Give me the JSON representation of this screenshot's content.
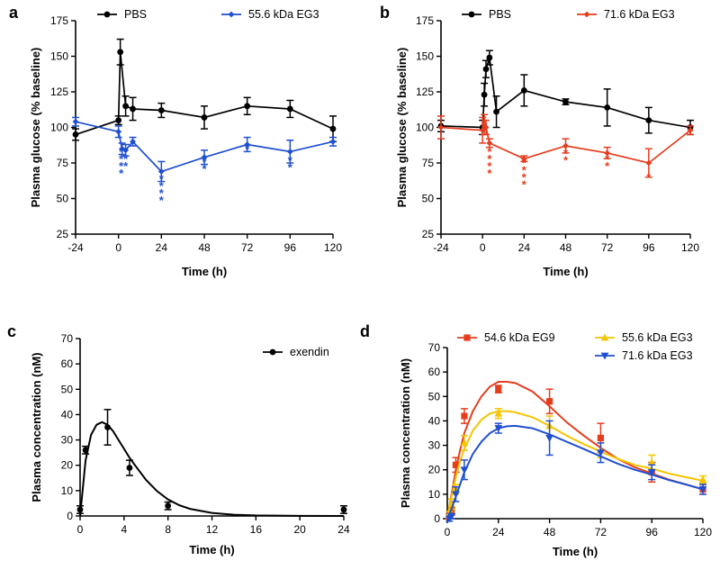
{
  "chart_data": [
    {
      "panel": "a",
      "type": "line",
      "title": "",
      "xlabel": "Time (h)",
      "ylabel": "Plasma glucose (% baseline)",
      "xlim": [
        -24,
        120
      ],
      "ylim": [
        25,
        175
      ],
      "xticks": [
        -24,
        0,
        24,
        48,
        72,
        96,
        120
      ],
      "yticks": [
        25,
        50,
        75,
        100,
        125,
        150,
        175
      ],
      "legend": "top",
      "series": [
        {
          "name": "PBS",
          "color": "#000000",
          "marker": "circle",
          "x": [
            -24,
            0,
            1,
            4,
            8,
            24,
            48,
            72,
            96,
            120
          ],
          "y": [
            95,
            105,
            153,
            115,
            113,
            112,
            107,
            115,
            113,
            99
          ],
          "err": [
            4,
            3,
            9,
            7,
            8,
            5,
            8,
            6,
            6,
            9
          ]
        },
        {
          "name": "55.6 kDa EG3",
          "color": "#1f4fd1",
          "marker": "diamond",
          "x": [
            -24,
            0,
            2,
            4,
            8,
            24,
            48,
            72,
            96,
            120
          ],
          "y": [
            104,
            97,
            85,
            84,
            90,
            69,
            79,
            88,
            83,
            90
          ],
          "err": [
            3,
            4,
            4,
            4,
            3,
            7,
            5,
            5,
            8,
            3
          ]
        }
      ],
      "annotations": [
        {
          "x": 1.5,
          "y": 80,
          "text": "****",
          "color": "#1f4fd1"
        },
        {
          "x": 4,
          "y": 80,
          "text": "***",
          "color": "#1f4fd1"
        },
        {
          "x": 8,
          "y": 86,
          "text": "*",
          "color": "#1f4fd1"
        },
        {
          "x": 24,
          "y": 61,
          "text": "****",
          "color": "#1f4fd1"
        },
        {
          "x": 48,
          "y": 73,
          "text": "**",
          "color": "#1f4fd1"
        },
        {
          "x": 72,
          "y": 82,
          "text": "*",
          "color": "#1f4fd1"
        },
        {
          "x": 96,
          "y": 74,
          "text": "**",
          "color": "#1f4fd1"
        }
      ]
    },
    {
      "panel": "b",
      "type": "line",
      "title": "",
      "xlabel": "Time (h)",
      "ylabel": "Plasma glucose (% baseline)",
      "xlim": [
        -24,
        120
      ],
      "ylim": [
        25,
        175
      ],
      "xticks": [
        -24,
        0,
        24,
        48,
        72,
        96,
        120
      ],
      "yticks": [
        25,
        50,
        75,
        100,
        125,
        150,
        175
      ],
      "legend": "top",
      "series": [
        {
          "name": "PBS",
          "color": "#000000",
          "marker": "circle",
          "x": [
            -24,
            0,
            1,
            2,
            4,
            8,
            24,
            48,
            72,
            96,
            120
          ],
          "y": [
            101,
            100,
            123,
            141,
            149,
            111,
            126,
            118,
            114,
            105,
            100
          ],
          "err": [
            4,
            5,
            8,
            6,
            5,
            11,
            11,
            2,
            13,
            9,
            5
          ]
        },
        {
          "name": "71.6 kDa EG3",
          "color": "#e53d1e",
          "marker": "diamond",
          "x": [
            -24,
            0,
            1,
            2,
            4,
            24,
            48,
            72,
            96,
            120
          ],
          "y": [
            100,
            98,
            102,
            100,
            89,
            78,
            87,
            82,
            75,
            98
          ],
          "err": [
            8,
            9,
            7,
            5,
            3,
            2,
            5,
            4,
            10,
            3
          ]
        }
      ],
      "annotations": [
        {
          "x": 4,
          "y": 80,
          "text": "****",
          "color": "#e53d1e"
        },
        {
          "x": 24,
          "y": 72,
          "text": "****",
          "color": "#e53d1e"
        },
        {
          "x": 48,
          "y": 79,
          "text": "**",
          "color": "#e53d1e"
        },
        {
          "x": 72,
          "y": 75,
          "text": "**",
          "color": "#e53d1e"
        },
        {
          "x": 96,
          "y": 62,
          "text": "*",
          "color": "#e53d1e"
        }
      ]
    },
    {
      "panel": "c",
      "type": "scatter",
      "title": "",
      "xlabel": "Time (h)",
      "ylabel": "Plasma concentration (nM)",
      "xlim": [
        0,
        24
      ],
      "ylim": [
        0,
        70
      ],
      "xticks": [
        0,
        4,
        8,
        12,
        16,
        20,
        24
      ],
      "yticks": [
        0,
        10,
        20,
        30,
        40,
        50,
        60,
        70
      ],
      "legend": "top-right",
      "series": [
        {
          "name": "exendin",
          "color": "#000000",
          "marker": "circle",
          "x": [
            0,
            0.5,
            2.5,
            4.5,
            8,
            24
          ],
          "y": [
            2.5,
            26,
            35,
            19,
            4,
            2.5
          ],
          "err": [
            1.5,
            1.5,
            7,
            3,
            1.5,
            1.5
          ],
          "fit_x": [
            0,
            0.5,
            1,
            1.5,
            2,
            2.5,
            3,
            3.5,
            4,
            4.5,
            5,
            6,
            7,
            8,
            9,
            10,
            12,
            14,
            16,
            20,
            24
          ],
          "fit_y": [
            0,
            22,
            32,
            36,
            37,
            36,
            33.5,
            30,
            26.5,
            23,
            20,
            14.2,
            9.8,
            6.5,
            4.3,
            2.8,
            1.2,
            0.5,
            0.2,
            0.05,
            0
          ]
        }
      ]
    },
    {
      "panel": "d",
      "type": "scatter",
      "title": "",
      "xlabel": "Time (h)",
      "ylabel": "Plasma concentration (nM)",
      "xlim": [
        0,
        120
      ],
      "ylim": [
        0,
        70
      ],
      "xticks": [
        0,
        24,
        48,
        72,
        96,
        120
      ],
      "yticks": [
        0,
        10,
        20,
        30,
        40,
        50,
        60,
        70
      ],
      "legend": "top",
      "series": [
        {
          "name": "54.6 kDa EG9",
          "color": "#e53d1e",
          "marker": "square",
          "x": [
            1,
            2,
            4,
            8,
            24,
            48,
            72,
            96,
            120
          ],
          "y": [
            1,
            3,
            22,
            42,
            53,
            48,
            33,
            19,
            12
          ],
          "err": [
            1,
            1.5,
            3,
            3,
            1.5,
            5,
            6,
            4,
            2
          ],
          "fit_x": [
            0,
            2,
            4,
            6,
            8,
            12,
            16,
            20,
            24,
            28,
            32,
            40,
            48,
            56,
            64,
            72,
            80,
            88,
            96,
            104,
            112,
            120
          ],
          "fit_y": [
            0,
            10,
            20,
            28,
            35,
            44,
            50,
            54,
            56,
            56,
            55.5,
            52,
            46,
            39.5,
            34,
            29,
            24.5,
            21,
            18.5,
            16,
            14,
            12
          ]
        },
        {
          "name": "55.6 kDa EG3",
          "color": "#f5c400",
          "marker": "triangle-up",
          "x": [
            1,
            2,
            4,
            8,
            24,
            48,
            72,
            96,
            120
          ],
          "y": [
            2,
            6,
            12,
            31,
            43,
            38,
            28,
            23,
            16
          ],
          "err": [
            1,
            2,
            2,
            3,
            2,
            4,
            3,
            3,
            1.5
          ],
          "fit_x": [
            0,
            2,
            4,
            6,
            8,
            12,
            16,
            20,
            24,
            28,
            32,
            40,
            48,
            56,
            64,
            72,
            80,
            88,
            96,
            104,
            112,
            120
          ],
          "fit_y": [
            0,
            9,
            17,
            23.5,
            28.5,
            36,
            40.5,
            43,
            44,
            44,
            43.5,
            41.5,
            38,
            34,
            30.5,
            27.5,
            24.5,
            22,
            20.5,
            18.5,
            17,
            15.5
          ]
        },
        {
          "name": "71.6 kDa EG3",
          "color": "#1f4fd1",
          "marker": "triangle-down",
          "x": [
            1,
            2,
            4,
            8,
            24,
            48,
            72,
            96,
            120
          ],
          "y": [
            0,
            1,
            10,
            20,
            37,
            33,
            27,
            19,
            12
          ],
          "err": [
            1,
            1,
            3,
            4,
            2,
            7,
            4,
            3,
            2
          ],
          "fit_x": [
            0,
            2,
            4,
            6,
            8,
            12,
            16,
            20,
            24,
            28,
            32,
            40,
            48,
            56,
            64,
            72,
            80,
            88,
            96,
            104,
            112,
            120
          ],
          "fit_y": [
            0,
            4,
            9,
            14,
            19,
            26.5,
            31.5,
            35,
            37,
            37.8,
            38,
            37,
            34.5,
            31.5,
            28.5,
            25.5,
            22.5,
            20,
            18,
            15.8,
            14,
            12
          ]
        }
      ]
    }
  ]
}
